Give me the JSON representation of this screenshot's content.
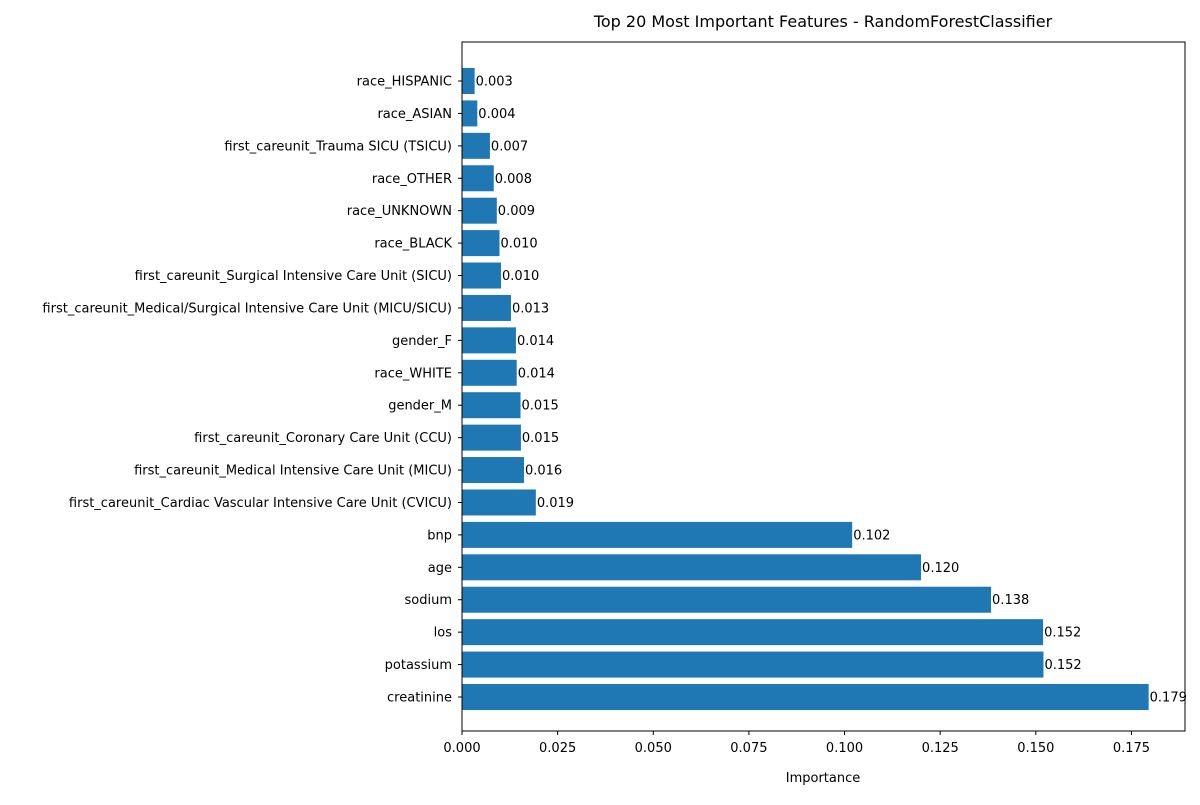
{
  "chart_data": {
    "type": "bar",
    "orientation": "horizontal",
    "title": "Top 20 Most Important Features - RandomForestClassifier",
    "xlabel": "Importance",
    "ylabel": "",
    "xlim": [
      0,
      0.189
    ],
    "xticks": [
      "0.000",
      "0.025",
      "0.050",
      "0.075",
      "0.100",
      "0.125",
      "0.150",
      "0.175"
    ],
    "grid": false,
    "bar_color": "#1f77b4",
    "categories": [
      "creatinine",
      "potassium",
      "los",
      "sodium",
      "age",
      "bnp",
      "first_careunit_Cardiac Vascular Intensive Care Unit (CVICU)",
      "first_careunit_Medical Intensive Care Unit (MICU)",
      "first_careunit_Coronary Care Unit (CCU)",
      "gender_M",
      "race_WHITE",
      "gender_F",
      "first_careunit_Medical/Surgical Intensive Care Unit (MICU/SICU)",
      "first_careunit_Surgical Intensive Care Unit (SICU)",
      "race_BLACK",
      "race_UNKNOWN",
      "race_OTHER",
      "first_careunit_Trauma SICU (TSICU)",
      "race_ASIAN",
      "race_HISPANIC"
    ],
    "values": [
      0.1795,
      0.152,
      0.1519,
      0.1383,
      0.12,
      0.102,
      0.0193,
      0.0162,
      0.0154,
      0.0153,
      0.0143,
      0.0141,
      0.0128,
      0.0102,
      0.0098,
      0.0091,
      0.0083,
      0.0073,
      0.004,
      0.0033
    ],
    "data_labels": [
      "0.179",
      "0.152",
      "0.152",
      "0.138",
      "0.120",
      "0.102",
      "0.019",
      "0.016",
      "0.015",
      "0.015",
      "0.014",
      "0.014",
      "0.013",
      "0.010",
      "0.010",
      "0.009",
      "0.008",
      "0.007",
      "0.004",
      "0.003"
    ]
  }
}
